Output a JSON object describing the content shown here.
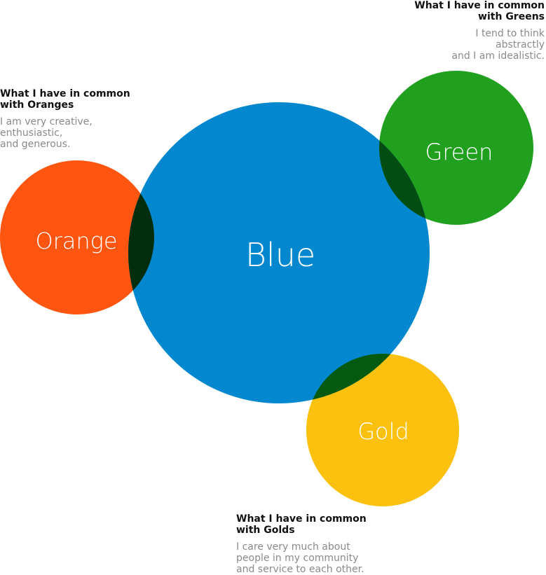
{
  "circles": {
    "blue": {
      "label": "Blue",
      "color": "#0388cf"
    },
    "orange": {
      "label": "Orange",
      "color": "#fe5511"
    },
    "green": {
      "label": "Green",
      "color": "#21a020"
    },
    "gold": {
      "label": "Gold",
      "color": "#fcc10f"
    }
  },
  "overlap_colors": {
    "blue_orange": "#032e0d",
    "blue_green": "#024d12",
    "blue_gold": "#035a10"
  },
  "notes": {
    "green": {
      "heading": "What I have in  common\nwith Greens",
      "text": "I tend to think\nabstractly\nand I am idealistic."
    },
    "orange": {
      "heading": "What I have in  common\nwith Oranges",
      "text": "I am very creative,\nenthusiastic,\nand generous."
    },
    "gold": {
      "heading": "What I have in  common\nwith Golds",
      "text": "I care very much about\npeople in my community\nand service to each other."
    }
  }
}
